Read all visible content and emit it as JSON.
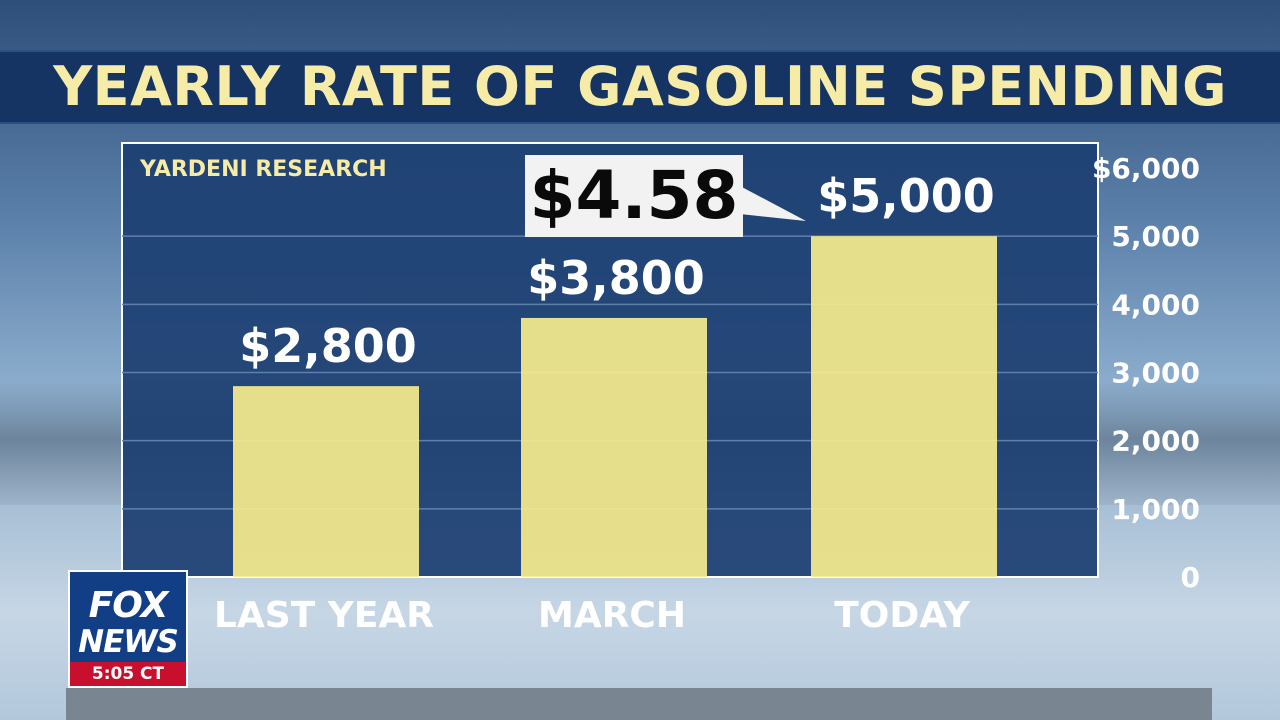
{
  "chart_data": {
    "type": "bar",
    "title": "YEARLY RATE OF GASOLINE SPENDING",
    "source": "YARDENI RESEARCH",
    "categories": [
      "LAST YEAR",
      "MARCH",
      "TODAY"
    ],
    "values": [
      2800,
      3800,
      5000
    ],
    "data_labels": [
      "$2,800",
      "$3,800",
      "$5,000"
    ],
    "y_ticks": [
      0,
      1000,
      2000,
      3000,
      4000,
      5000,
      6000
    ],
    "y_tick_labels": [
      "0",
      "1,000",
      "2,000",
      "3,000",
      "4,000",
      "5,000",
      "$6,000"
    ],
    "ylim": [
      0,
      6000
    ],
    "y_axis_position": "right",
    "grid": true,
    "bar_color": "#f6ec8c",
    "annotation": "$4.58"
  },
  "network": {
    "logo_top": "FOX",
    "logo_bottom": "NEWS",
    "clock": "5:05 CT"
  },
  "colors": {
    "title_band": "#163463",
    "title_text": "#f6eca8",
    "plot_background": "#1d3f72",
    "source_text": "#f6eca8",
    "clock_bar": "#c8102e"
  }
}
